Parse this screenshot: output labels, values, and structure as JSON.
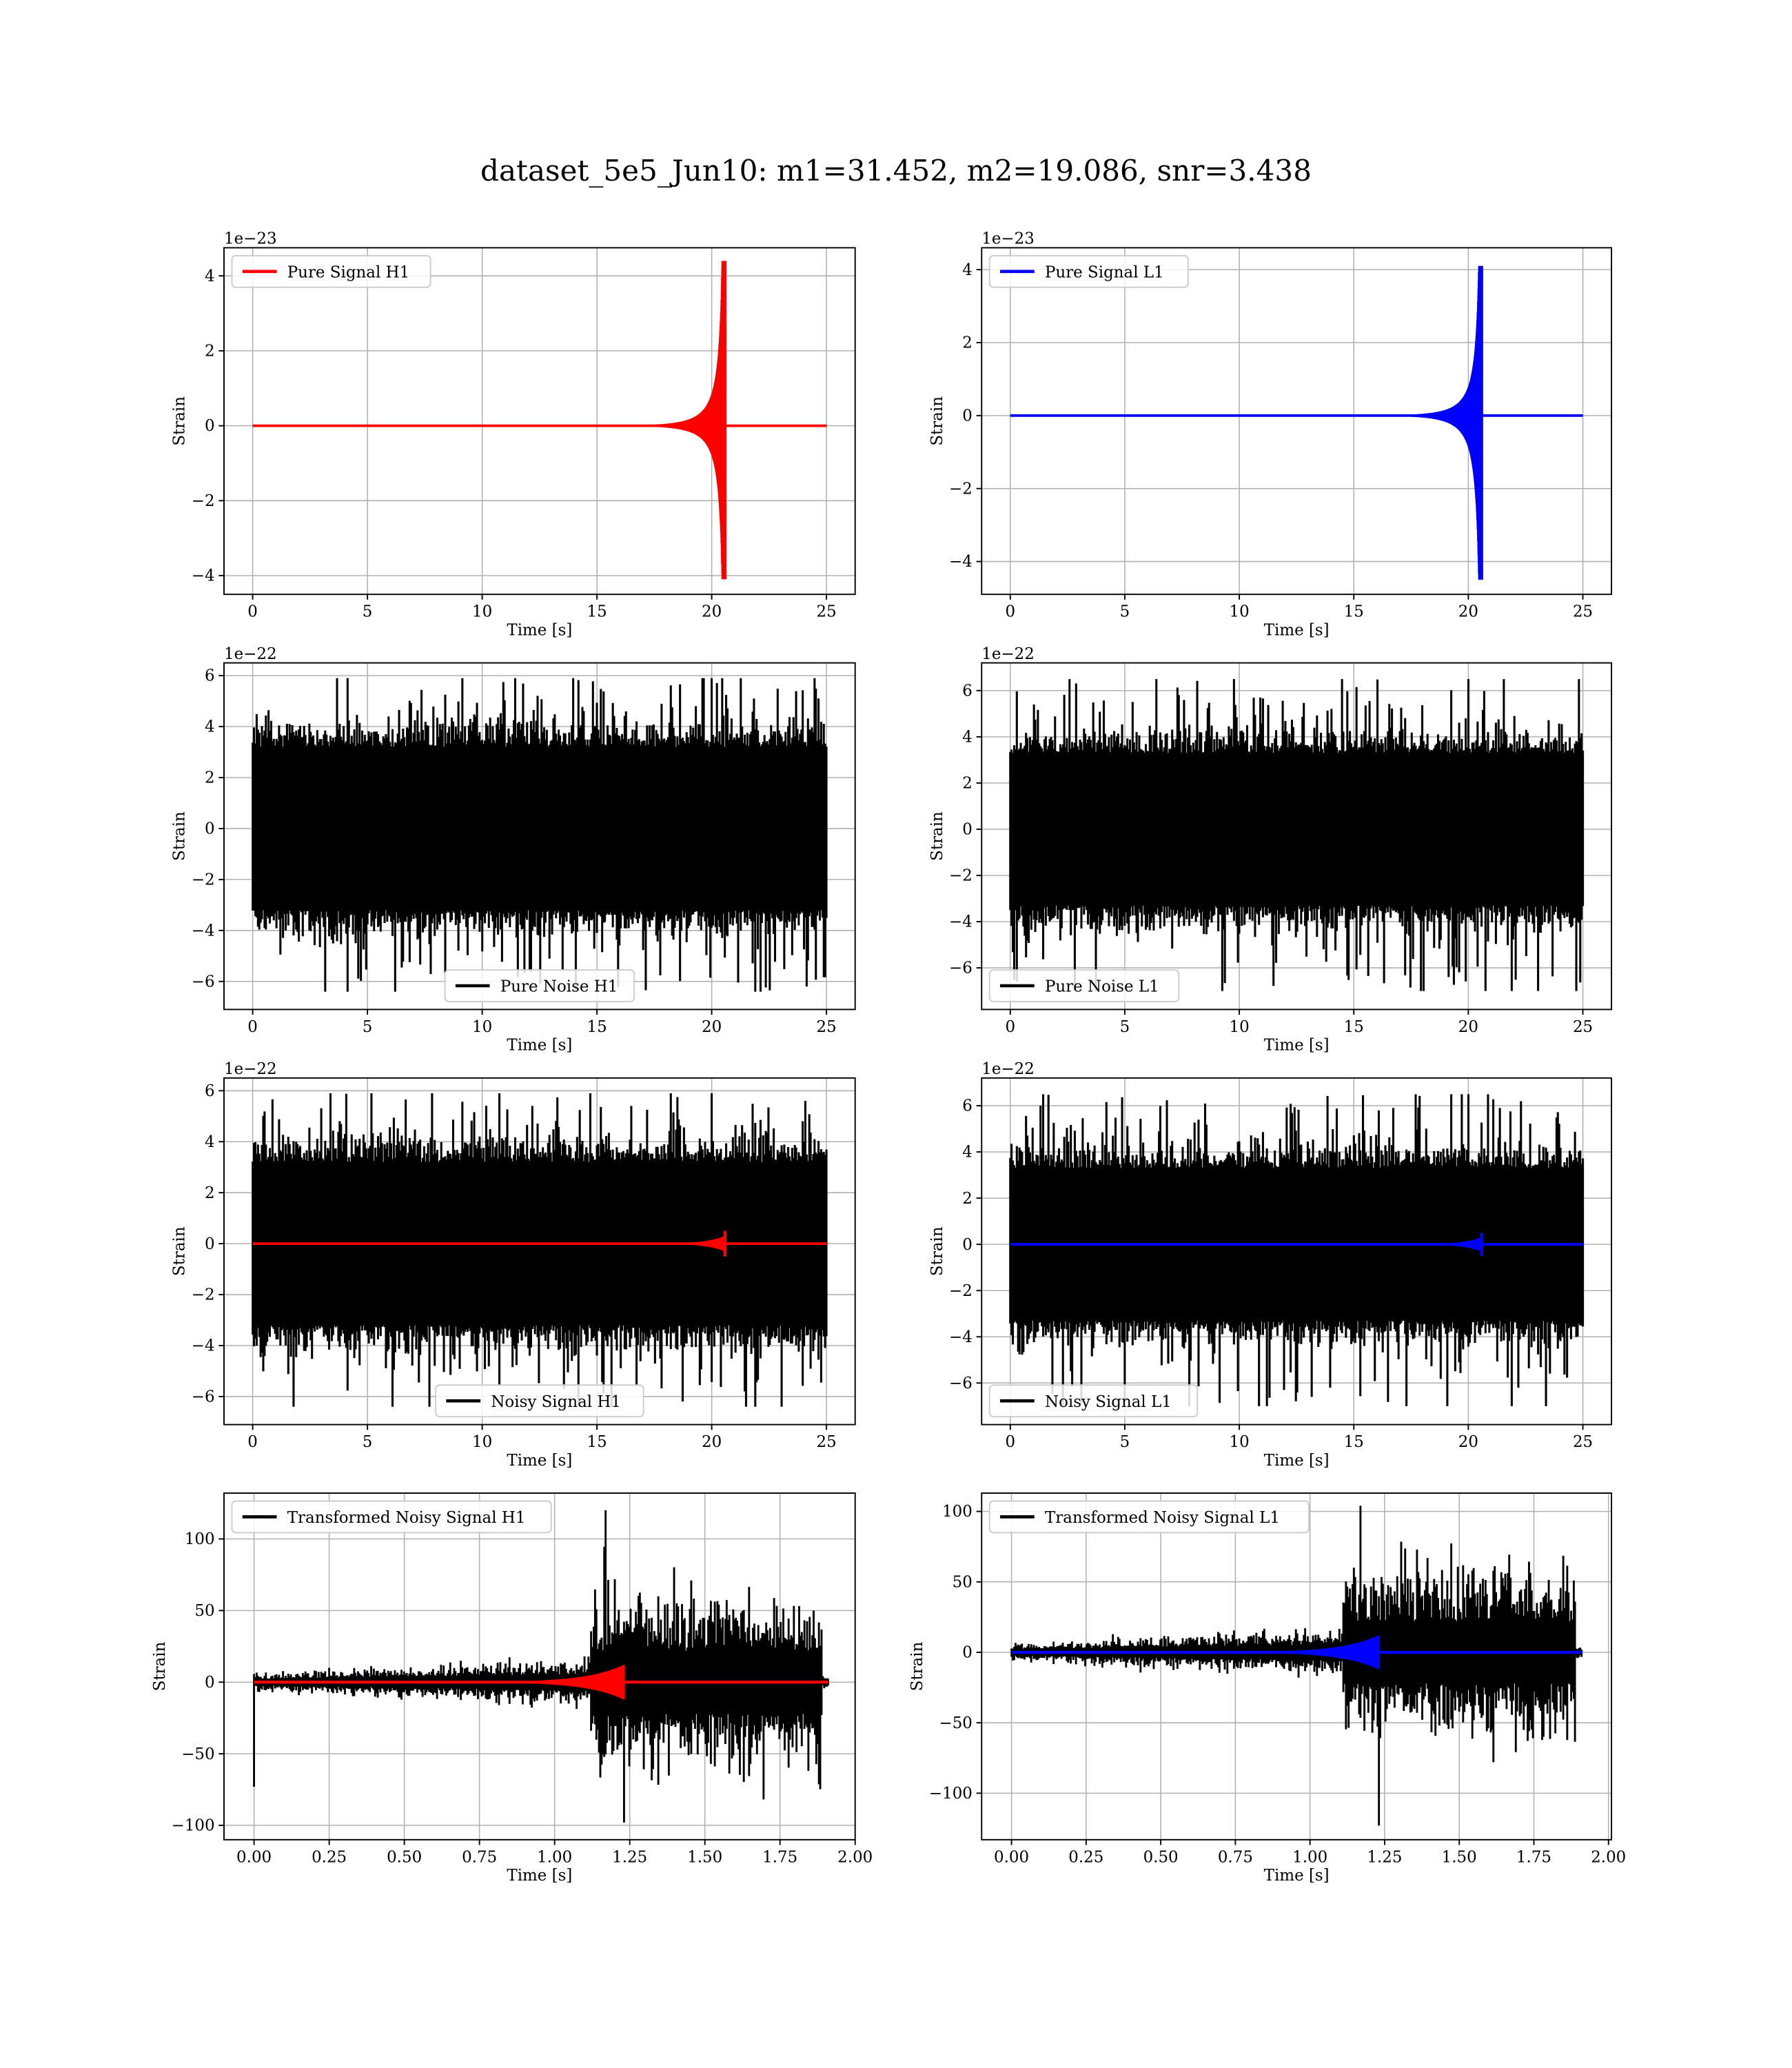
{
  "figure": {
    "title": "dataset_5e5_Jun10: m1=31.452, m2=19.086, snr=3.438"
  },
  "chart_data": [
    {
      "type": "line",
      "kind": "signal",
      "legend": [
        "Pure Signal H1"
      ],
      "legend_loc": "upper left",
      "series": [
        {
          "name": "Pure Signal H1",
          "color": "#ff0000"
        }
      ],
      "xlabel": "Time [s]",
      "ylabel": "Strain",
      "offset": "1e−23",
      "xlim": [
        -1.25,
        26.25
      ],
      "ylim": [
        -4.5,
        4.75
      ],
      "xticks": [
        0,
        5,
        10,
        15,
        20,
        25
      ],
      "xtick_labels": [
        "0",
        "5",
        "10",
        "15",
        "20",
        "25"
      ],
      "yticks": [
        -4,
        -2,
        0,
        2,
        4
      ],
      "ytick_labels": [
        "−4",
        "−2",
        "0",
        "2",
        "4"
      ],
      "duration": 25,
      "merger_time": 20.6,
      "peak_pos": 4.4,
      "peak_neg": -4.1,
      "grid": true
    },
    {
      "type": "line",
      "kind": "signal",
      "legend": [
        "Pure Signal L1"
      ],
      "legend_loc": "upper left",
      "series": [
        {
          "name": "Pure Signal L1",
          "color": "#0000ff"
        }
      ],
      "xlabel": "Time [s]",
      "ylabel": "Strain",
      "offset": "1e−23",
      "xlim": [
        -1.25,
        26.25
      ],
      "ylim": [
        -4.9,
        4.6
      ],
      "xticks": [
        0,
        5,
        10,
        15,
        20,
        25
      ],
      "xtick_labels": [
        "0",
        "5",
        "10",
        "15",
        "20",
        "25"
      ],
      "yticks": [
        -4,
        -2,
        0,
        2,
        4
      ],
      "ytick_labels": [
        "−4",
        "−2",
        "0",
        "2",
        "4"
      ],
      "duration": 25,
      "merger_time": 20.6,
      "peak_pos": 4.1,
      "peak_neg": -4.5,
      "grid": true
    },
    {
      "type": "line",
      "kind": "noise",
      "legend": [
        "Pure Noise H1"
      ],
      "legend_loc": "lower center",
      "series": [
        {
          "name": "Pure Noise H1",
          "color": "#000000"
        }
      ],
      "xlabel": "Time [s]",
      "ylabel": "Strain",
      "offset": "1e−22",
      "xlim": [
        -1.25,
        26.25
      ],
      "ylim": [
        -7.1,
        6.5
      ],
      "xticks": [
        0,
        5,
        10,
        15,
        20,
        25
      ],
      "xtick_labels": [
        "0",
        "5",
        "10",
        "15",
        "20",
        "25"
      ],
      "yticks": [
        -6,
        -4,
        -2,
        0,
        2,
        4,
        6
      ],
      "ytick_labels": [
        "−6",
        "−4",
        "−2",
        "0",
        "2",
        "4",
        "6"
      ],
      "duration": 25,
      "band": 3.2,
      "max": 5.9,
      "min": -6.4,
      "grid": true
    },
    {
      "type": "line",
      "kind": "noise",
      "legend": [
        "Pure Noise L1"
      ],
      "legend_loc": "lower left",
      "series": [
        {
          "name": "Pure Noise L1",
          "color": "#000000"
        }
      ],
      "xlabel": "Time [s]",
      "ylabel": "Strain",
      "offset": "1e−22",
      "xlim": [
        -1.25,
        26.25
      ],
      "ylim": [
        -7.8,
        7.2
      ],
      "xticks": [
        0,
        5,
        10,
        15,
        20,
        25
      ],
      "xtick_labels": [
        "0",
        "5",
        "10",
        "15",
        "20",
        "25"
      ],
      "yticks": [
        -6,
        -4,
        -2,
        0,
        2,
        4,
        6
      ],
      "ytick_labels": [
        "−6",
        "−4",
        "−2",
        "0",
        "2",
        "4",
        "6"
      ],
      "duration": 25,
      "band": 3.3,
      "max": 6.5,
      "min": -7.0,
      "grid": true
    },
    {
      "type": "line",
      "kind": "noisy",
      "legend": [
        "Noisy Signal H1"
      ],
      "legend_loc": "lower center",
      "series": [
        {
          "name": "Noisy Signal H1",
          "color": "#000000"
        },
        {
          "name": "",
          "color": "#ff0000"
        }
      ],
      "xlabel": "Time [s]",
      "ylabel": "Strain",
      "offset": "1e−22",
      "xlim": [
        -1.25,
        26.25
      ],
      "ylim": [
        -7.1,
        6.5
      ],
      "xticks": [
        0,
        5,
        10,
        15,
        20,
        25
      ],
      "xtick_labels": [
        "0",
        "5",
        "10",
        "15",
        "20",
        "25"
      ],
      "yticks": [
        -6,
        -4,
        -2,
        0,
        2,
        4,
        6
      ],
      "ytick_labels": [
        "−6",
        "−4",
        "−2",
        "0",
        "2",
        "4",
        "6"
      ],
      "duration": 25,
      "band": 3.2,
      "max": 5.9,
      "min": -6.4,
      "merger_time": 20.6,
      "signal_peak": 0.5,
      "grid": true
    },
    {
      "type": "line",
      "kind": "noisy",
      "legend": [
        "Noisy Signal L1"
      ],
      "legend_loc": "lower left",
      "series": [
        {
          "name": "Noisy Signal L1",
          "color": "#000000"
        },
        {
          "name": "",
          "color": "#0000ff"
        }
      ],
      "xlabel": "Time [s]",
      "ylabel": "Strain",
      "offset": "1e−22",
      "xlim": [
        -1.25,
        26.25
      ],
      "ylim": [
        -7.8,
        7.2
      ],
      "xticks": [
        0,
        5,
        10,
        15,
        20,
        25
      ],
      "xtick_labels": [
        "0",
        "5",
        "10",
        "15",
        "20",
        "25"
      ],
      "yticks": [
        -6,
        -4,
        -2,
        0,
        2,
        4,
        6
      ],
      "ytick_labels": [
        "−6",
        "−4",
        "−2",
        "0",
        "2",
        "4",
        "6"
      ],
      "duration": 25,
      "band": 3.3,
      "max": 6.5,
      "min": -7.0,
      "merger_time": 20.6,
      "signal_peak": 0.5,
      "grid": true
    },
    {
      "type": "line",
      "kind": "transformed",
      "legend": [
        "Transformed Noisy Signal H1"
      ],
      "legend_loc": "upper left",
      "series": [
        {
          "name": "Transformed Noisy Signal H1",
          "color": "#000000"
        },
        {
          "name": "",
          "color": "#ff0000"
        }
      ],
      "xlabel": "Time [s]",
      "ylabel": "Strain",
      "xlim": [
        -0.1,
        2.0
      ],
      "ylim": [
        -110,
        132
      ],
      "xticks": [
        0,
        0.25,
        0.5,
        0.75,
        1.0,
        1.25,
        1.5,
        1.75,
        2.0
      ],
      "xtick_labels": [
        "0.00",
        "0.25",
        "0.50",
        "0.75",
        "1.00",
        "1.25",
        "1.50",
        "1.75",
        "2.00"
      ],
      "yticks": [
        -100,
        -50,
        0,
        50,
        100
      ],
      "ytick_labels": [
        "−100",
        "−50",
        "0",
        "50",
        "100"
      ],
      "duration": 1.91,
      "merger_time": 1.23,
      "onset_time": 1.12,
      "pre_amp": 10,
      "post_amp": 55,
      "max": 120,
      "min": -98,
      "spike_at_start": -73,
      "signal_peak": 12,
      "grid": true
    },
    {
      "type": "line",
      "kind": "transformed",
      "legend": [
        "Transformed Noisy Signal L1"
      ],
      "legend_loc": "upper left",
      "series": [
        {
          "name": "Transformed Noisy Signal L1",
          "color": "#000000"
        },
        {
          "name": "",
          "color": "#0000ff"
        }
      ],
      "xlabel": "Time [s]",
      "ylabel": "Strain",
      "xlim": [
        -0.1,
        2.01
      ],
      "ylim": [
        -133,
        113
      ],
      "xticks": [
        0,
        0.25,
        0.5,
        0.75,
        1.0,
        1.25,
        1.5,
        1.75,
        2.0
      ],
      "xtick_labels": [
        "0.00",
        "0.25",
        "0.50",
        "0.75",
        "1.00",
        "1.25",
        "1.50",
        "1.75",
        "2.00"
      ],
      "yticks": [
        -100,
        -50,
        0,
        50,
        100
      ],
      "ytick_labels": [
        "−100",
        "−50",
        "0",
        "50",
        "100"
      ],
      "duration": 1.91,
      "merger_time": 1.23,
      "onset_time": 1.11,
      "pre_amp": 10,
      "post_amp": 55,
      "max": 104,
      "min": -123,
      "spike_at_start": 0,
      "signal_peak": 12,
      "grid": true
    }
  ]
}
